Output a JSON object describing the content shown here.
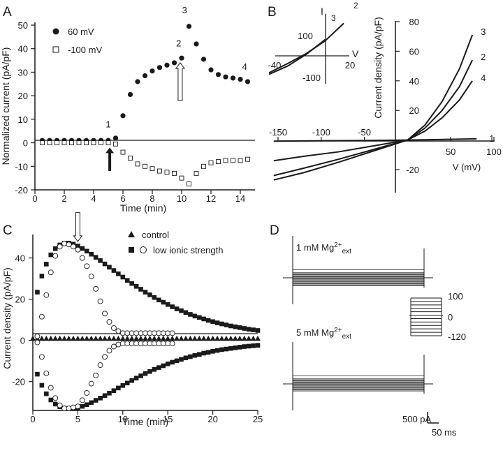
{
  "panels": {
    "A": "A",
    "B": "B",
    "C": "C",
    "D": "D"
  },
  "chart_data": [
    {
      "id": "A",
      "type": "scatter",
      "xlabel": "Time (min)",
      "ylabel": "Normalized current (pA/pF)",
      "xlim": [
        0,
        15
      ],
      "ylim": [
        -20,
        50
      ],
      "xticks": [
        0,
        2,
        4,
        6,
        8,
        10,
        12,
        14
      ],
      "yticks": [
        -20,
        -10,
        0,
        10,
        20,
        30,
        40,
        50
      ],
      "legend": [
        "60 mV",
        "-100 mV"
      ],
      "point_labels": [
        {
          "text": "1",
          "x": 5.0,
          "y": 6.5
        },
        {
          "text": "2",
          "x": 9.8,
          "y": 41
        },
        {
          "text": "3",
          "x": 10.2,
          "y": 55
        },
        {
          "text": "4",
          "x": 14.3,
          "y": 31
        }
      ],
      "arrows": [
        {
          "style": "filled",
          "x": 5.1,
          "y_from": -12,
          "y_to": -2
        },
        {
          "style": "open",
          "x": 9.9,
          "y_from": 18,
          "y_to": 34
        }
      ],
      "series": [
        {
          "name": "60 mV",
          "marker": "filled-circle",
          "x": [
            0.5,
            1.0,
            1.5,
            2.0,
            2.5,
            3.0,
            3.5,
            4.0,
            4.5,
            5.0,
            5.5,
            6.0,
            6.5,
            7.0,
            7.5,
            8.0,
            8.5,
            9.0,
            9.5,
            10.0,
            10.5,
            11.0,
            11.5,
            12.0,
            12.5,
            13.0,
            13.5,
            14.0,
            14.5
          ],
          "values": [
            1,
            1,
            1,
            1,
            1,
            1,
            1,
            1,
            1,
            1,
            2,
            11.5,
            20.5,
            26,
            28.5,
            30.5,
            32,
            33,
            34,
            36,
            49.5,
            42,
            35.5,
            31,
            29,
            28,
            27.5,
            27,
            26
          ]
        },
        {
          "name": "-100 mV",
          "marker": "open-square",
          "x": [
            0.5,
            1.0,
            1.5,
            2.0,
            2.5,
            3.0,
            3.5,
            4.0,
            4.5,
            5.0,
            5.5,
            6.0,
            6.5,
            7.0,
            7.5,
            8.0,
            8.5,
            9.0,
            9.5,
            10.0,
            10.5,
            11.0,
            11.5,
            12.0,
            12.5,
            13.0,
            13.5,
            14.0,
            14.5
          ],
          "values": [
            0,
            0,
            0,
            0,
            0,
            0,
            0,
            0,
            0,
            0,
            -0.5,
            -4,
            -6.5,
            -9,
            -10,
            -11,
            -12,
            -12.5,
            -13,
            -15,
            -17.5,
            -13,
            -10,
            -8.5,
            -8,
            -7.5,
            -7.5,
            -7.5,
            -7
          ]
        }
      ]
    },
    {
      "id": "B",
      "type": "line",
      "xlabel": "V (mV)",
      "ylabel": "Current density (pA/pF)",
      "xlim": [
        -150,
        100
      ],
      "ylim": [
        -30,
        80
      ],
      "xticks": [
        -150,
        -100,
        -50,
        50,
        100
      ],
      "yticks": [
        -20,
        20,
        40,
        60,
        80
      ],
      "series": [
        {
          "name": "1",
          "x": [
            -155,
            -100,
            -50,
            0,
            80
          ],
          "values": [
            -0.8,
            -0.5,
            -0.3,
            0,
            0.8
          ]
        },
        {
          "name": "2",
          "x": [
            -155,
            -120,
            -80,
            -40,
            0,
            20,
            40,
            60,
            75
          ],
          "values": [
            -24,
            -19,
            -13,
            -6.5,
            0,
            8,
            20,
            36,
            54
          ]
        },
        {
          "name": "3",
          "x": [
            -155,
            -120,
            -80,
            -40,
            0,
            20,
            40,
            60,
            75
          ],
          "values": [
            -27,
            -22,
            -15,
            -7.5,
            0,
            10,
            26,
            48,
            71
          ]
        },
        {
          "name": "4",
          "x": [
            -155,
            -120,
            -80,
            -40,
            0,
            20,
            40,
            60,
            75
          ],
          "values": [
            -14,
            -11,
            -8,
            -4,
            0,
            6,
            15,
            27,
            40
          ]
        }
      ],
      "inset": {
        "xlabel": "V",
        "ylabel": "I",
        "xticks": [
          -40,
          20
        ],
        "yticks": [
          100,
          -100
        ],
        "series": [
          {
            "name": "2",
            "x": [
              -45,
              -30,
              -15,
              0,
              15
            ],
            "values": [
              -62,
              -25,
              15,
              65,
              135
            ]
          },
          {
            "name": "3",
            "x": [
              -45,
              -30,
              -15,
              0
            ],
            "values": [
              -68,
              -35,
              12,
              70
            ]
          }
        ]
      }
    },
    {
      "id": "C",
      "type": "scatter",
      "xlabel": "Time (min)",
      "ylabel": "Current density (pA/pF)",
      "xlim": [
        0,
        25
      ],
      "ylim": [
        -35,
        50
      ],
      "xticks": [
        0,
        5,
        10,
        15,
        20,
        25
      ],
      "yticks": [
        -20,
        0,
        20,
        40
      ],
      "legend": [
        "control",
        "low ionic strength"
      ],
      "arrows": [
        {
          "style": "open",
          "x": 5.0,
          "y_from": 62,
          "y_to": 48
        }
      ],
      "series": [
        {
          "name": "control",
          "marker": "filled-triangle",
          "x": [
            0,
            0.5,
            1,
            1.5,
            2,
            2.5,
            3,
            3.5,
            4,
            4.5,
            5,
            5.5,
            6,
            6.5,
            7,
            7.5,
            8,
            8.5,
            9,
            9.5,
            10,
            10.5,
            11,
            11.5,
            12,
            12.5,
            13,
            13.5,
            14,
            14.5,
            15,
            15.5,
            16,
            16.5,
            17,
            17.5,
            18,
            18.5,
            19,
            19.5,
            20,
            20.5,
            21,
            21.5,
            22,
            22.5,
            23,
            23.5,
            24,
            24.5,
            25
          ],
          "values": [
            1,
            1,
            1,
            1,
            1,
            1,
            1,
            1,
            1,
            1,
            1,
            1,
            1,
            1,
            1,
            1,
            1,
            1,
            1,
            1,
            1,
            1,
            1,
            1,
            1,
            1,
            1,
            1,
            1,
            1,
            1,
            1,
            1,
            1,
            1,
            1,
            1,
            1,
            1,
            1,
            1,
            1,
            1,
            1,
            1,
            1,
            1,
            1,
            1,
            1,
            1
          ]
        },
        {
          "name": "low ionic strength (outward)",
          "marker": "filled-square",
          "x": [
            0.5,
            1.0,
            1.5,
            2.0,
            2.5,
            3.0,
            3.5,
            4.0,
            4.5,
            5.0,
            5.5,
            6.0,
            6.5,
            7.0,
            7.5,
            8.0,
            8.5,
            9.0,
            9.5,
            10.0,
            10.5,
            11.0,
            11.5,
            12.0,
            12.5,
            13.0,
            13.5,
            14.0,
            14.5,
            15.0,
            15.5,
            16.0,
            16.5,
            17.0,
            17.5,
            18.0,
            18.5,
            19.0,
            19.5,
            20.0,
            20.5,
            21.0,
            21.5,
            22.0,
            22.5,
            23.0,
            23.5,
            24.0,
            24.5,
            25.0
          ],
          "values": [
            23.4,
            31.2,
            37.0,
            41.5,
            44.5,
            46.3,
            47.2,
            47.2,
            46.7,
            45.8,
            44.6,
            43.3,
            41.8,
            40.3,
            38.7,
            37.1,
            35.5,
            33.9,
            32.3,
            30.7,
            29.1,
            27.6,
            26.2,
            24.8,
            23.4,
            22.1,
            20.8,
            19.6,
            18.5,
            17.4,
            16.3,
            15.3,
            14.4,
            13.5,
            12.6,
            11.8,
            11.1,
            10.4,
            9.7,
            9.1,
            8.5,
            8.0,
            7.5,
            7.0,
            6.6,
            6.2,
            5.8,
            5.4,
            5.1,
            4.8
          ]
        },
        {
          "name": "low ionic strength (inward)",
          "marker": "filled-square",
          "x": [
            0.5,
            1.0,
            1.5,
            2.0,
            2.5,
            3.0,
            3.5,
            4.0,
            4.5,
            5.0,
            5.5,
            6.0,
            6.5,
            7.0,
            7.5,
            8.0,
            8.5,
            9.0,
            9.5,
            10.0,
            10.5,
            11.0,
            11.5,
            12.0,
            12.5,
            13.0,
            13.5,
            14.0,
            14.5,
            15.0,
            15.5,
            16.0,
            16.5,
            17.0,
            17.5,
            18.0,
            18.5,
            19.0,
            19.5,
            20.0,
            20.5,
            21.0,
            21.5,
            22.0,
            22.5,
            23.0,
            23.5,
            24.0,
            24.5,
            25.0
          ],
          "values": [
            -16.4,
            -21.8,
            -25.9,
            -28.9,
            -30.9,
            -32.2,
            -32.9,
            -33.2,
            -33.1,
            -32.7,
            -32.0,
            -31.2,
            -30.2,
            -29.1,
            -28.0,
            -26.8,
            -25.6,
            -24.4,
            -23.1,
            -21.9,
            -20.7,
            -19.5,
            -18.3,
            -17.2,
            -16.1,
            -15.1,
            -14.1,
            -13.2,
            -12.3,
            -11.4,
            -10.6,
            -9.9,
            -9.2,
            -8.5,
            -7.9,
            -7.3,
            -6.8,
            -6.2,
            -5.8,
            -5.3,
            -4.9,
            -4.5,
            -4.2,
            -3.9,
            -3.6,
            -3.3,
            -3.0,
            -2.8,
            -2.6,
            -2.4
          ]
        },
        {
          "name": "low ionic strength, other (outward)",
          "marker": "open-circle",
          "x": [
            0.5,
            1.0,
            1.5,
            2.0,
            2.5,
            3.0,
            3.5,
            4.0,
            4.5,
            5.0,
            5.5,
            6.0,
            6.5,
            7.0,
            7.5,
            8.0,
            8.5,
            9.0,
            9.5,
            10.0,
            10.5,
            11.0,
            11.5,
            12.0,
            12.5,
            13.0,
            13.5,
            14.0,
            14.5,
            15.0,
            15.5
          ],
          "values": [
            2,
            11.5,
            22,
            33,
            41,
            45.5,
            47,
            46.5,
            45.5,
            44,
            40,
            36,
            31,
            25,
            19,
            13,
            9,
            6,
            4.5,
            3.5,
            3.5,
            3.5,
            3.5,
            3.5,
            3.5,
            3.5,
            3.5,
            3.5,
            3.5,
            3.5,
            3.5
          ]
        },
        {
          "name": "low ionic strength, other (inward)",
          "marker": "open-circle",
          "x": [
            0.5,
            1.0,
            1.5,
            2.0,
            2.5,
            3.0,
            3.5,
            4.0,
            4.5,
            5.0,
            5.5,
            6.0,
            6.5,
            7.0,
            7.5,
            8.0,
            8.5,
            9.0,
            9.5,
            10.0,
            10.5,
            11.0,
            11.5,
            12.0,
            12.5,
            13.0,
            13.5,
            14.0,
            14.5,
            15.0,
            15.5
          ],
          "values": [
            -1,
            -8,
            -16,
            -23,
            -28,
            -31.5,
            -33,
            -33,
            -32.5,
            -32,
            -29,
            -25.5,
            -21,
            -17,
            -12,
            -8,
            -5,
            -3,
            -2,
            -1.5,
            -1.5,
            -1.5,
            -1.5,
            -1.5,
            -1.5,
            -1.5,
            -1.5,
            -1.5,
            -1.5,
            -1.5,
            -1.5
          ]
        }
      ]
    },
    {
      "id": "D",
      "type": "line",
      "traces": [
        {
          "label": "1 mM Mg",
          "superscript": "2+",
          "subscript": "ext",
          "levels_pA": [
            -800,
            -700,
            -600,
            -500,
            -400,
            -300,
            -200,
            -100,
            0,
            100,
            200,
            300,
            400,
            500,
            800
          ],
          "duration_ms": 950
        },
        {
          "label": "5 mM Mg",
          "superscript": "2+",
          "subscript": "ext",
          "levels_pA": [
            -700,
            -600,
            -500,
            -400,
            -300,
            -200,
            -100,
            0,
            100,
            200,
            300,
            400,
            500,
            800
          ],
          "duration_ms": 950
        }
      ],
      "protocol": {
        "tick_labels": [
          "100",
          "0",
          "-120"
        ],
        "levels_mV": [
          100,
          80,
          60,
          40,
          20,
          0,
          -20,
          -40,
          -60,
          -80,
          -100,
          -120
        ]
      },
      "scalebar": {
        "current_label": "500 pA",
        "time_label": "50 ms"
      }
    }
  ]
}
